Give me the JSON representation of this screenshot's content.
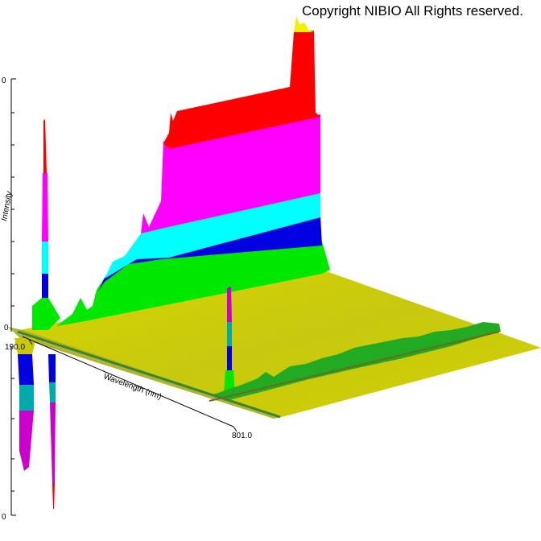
{
  "copyright": "Copyright NIBIO All Rights reserved.",
  "chart_data": {
    "type": "3d-surface",
    "title": "",
    "xlabel": "Wavelength (nm)",
    "zlabel": "Intensity",
    "xlim": [
      190.0,
      801.0
    ],
    "x_tick_labels": [
      "190.0",
      "801.0"
    ],
    "z_tick_labels": [
      "0",
      "0",
      "0"
    ],
    "color_bands": [
      "#f0f000",
      "#00ff00",
      "#0000e0",
      "#00ffff",
      "#ff00ff",
      "#ff0000"
    ],
    "floor_color": "#c8c800"
  }
}
